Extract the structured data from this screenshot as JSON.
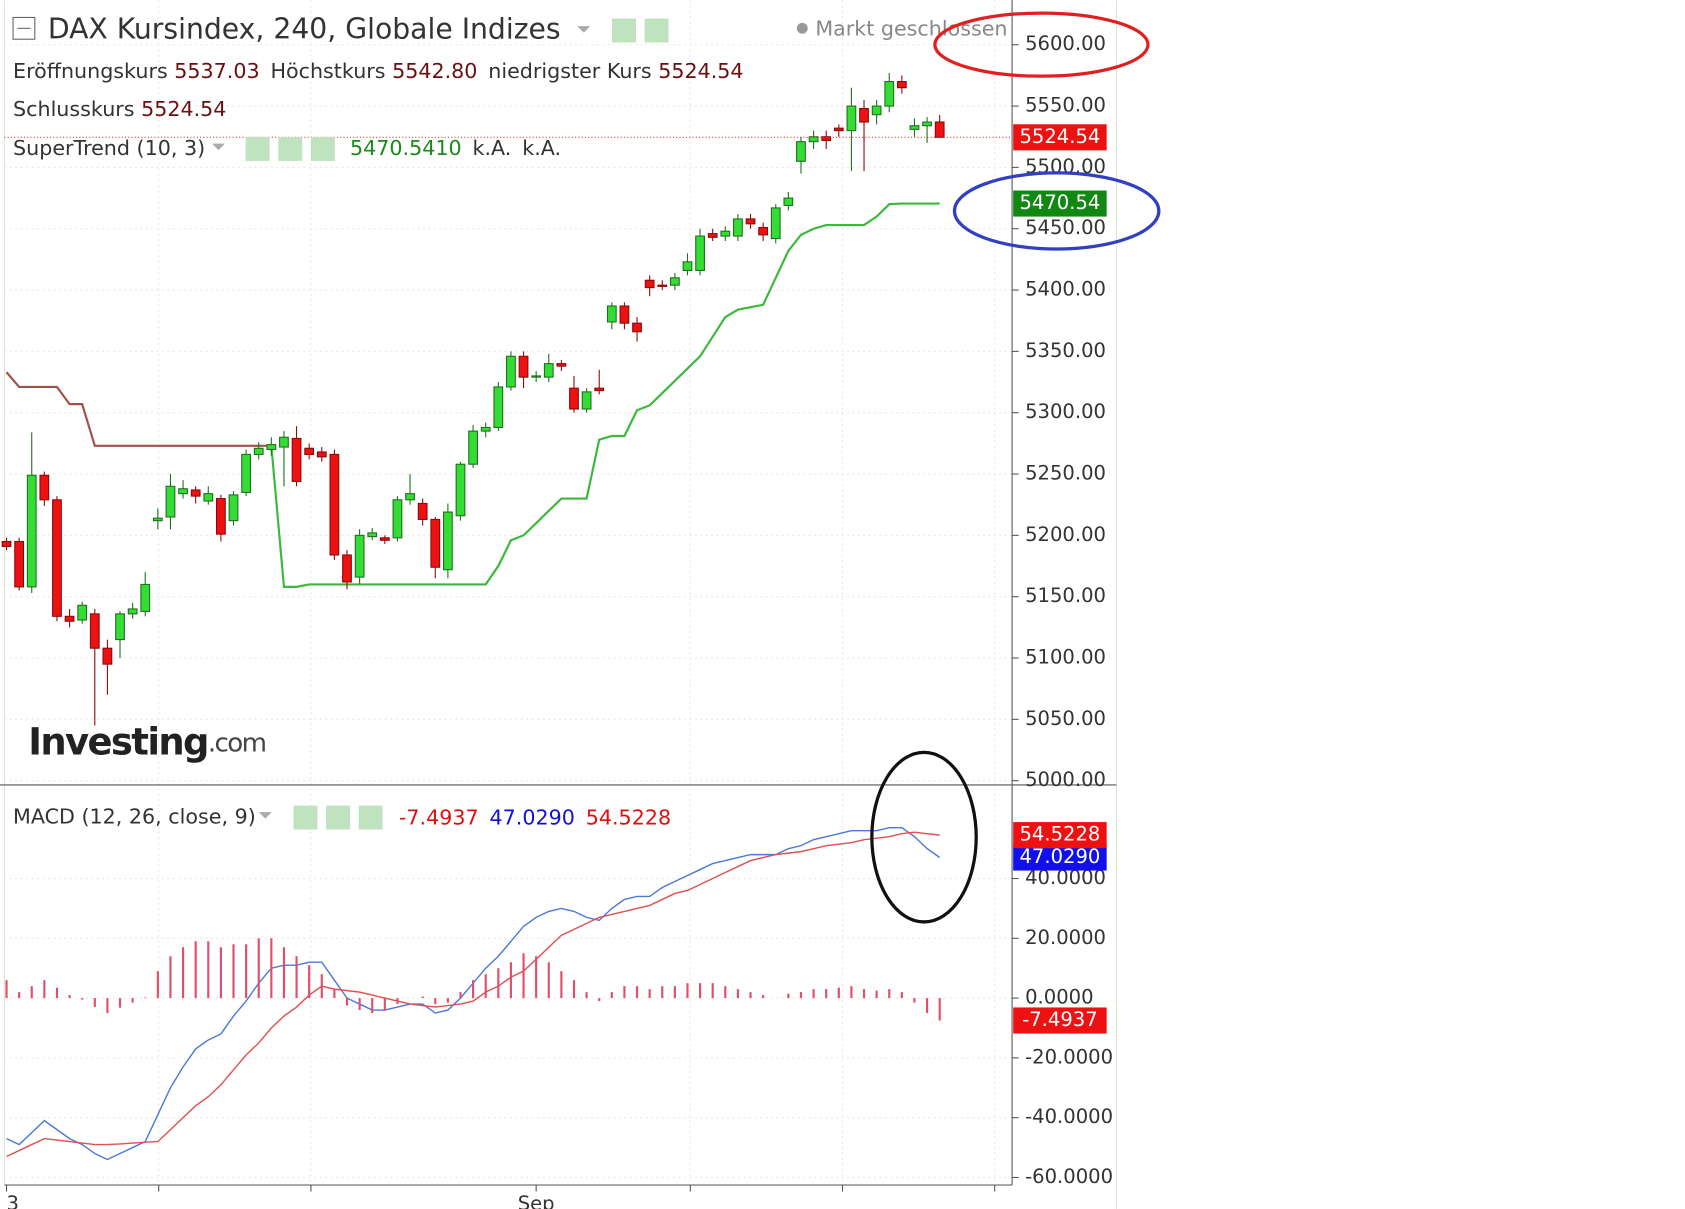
{
  "chart_data": [
    {
      "type": "candlestick",
      "title": "DAX Kursindex, 240, Globale Indizes",
      "status": "Markt geschlossen",
      "ohlc_legend": [
        {
          "name": "Eröffnungskurs",
          "value": "5537.03"
        },
        {
          "name": "Höchstkurs",
          "value": "5542.80"
        },
        {
          "name": "niedrigster Kurs",
          "value": "5524.54"
        },
        {
          "name": "Schlusskurs",
          "value": "5524.54"
        }
      ],
      "indicator": {
        "name": "SuperTrend (10, 3)",
        "readout": [
          "5470.5410",
          "k.A.",
          "k.A."
        ],
        "tag": "5470.54",
        "upper_color": "#a0524a",
        "lower_color": "#3cb83c",
        "upper": [
          5333,
          5321,
          5321,
          5321,
          5321,
          5307,
          5307,
          5273,
          5273,
          5273,
          5273,
          5273,
          5273,
          5273,
          5273,
          5273,
          5273,
          5273,
          5273,
          5273,
          5273,
          5273,
          null,
          null,
          null,
          null,
          null,
          null,
          null,
          null,
          null,
          null,
          null,
          null,
          null,
          null,
          null,
          null,
          null,
          null,
          null,
          null,
          null,
          null,
          null,
          null,
          null,
          null,
          null,
          null,
          null,
          null,
          null,
          null,
          null,
          null,
          null,
          null,
          null,
          null,
          null,
          null,
          null,
          null,
          null,
          null,
          null,
          null,
          null,
          null,
          null,
          null,
          null,
          null,
          null
        ],
        "lower": [
          null,
          null,
          null,
          null,
          null,
          null,
          null,
          null,
          null,
          null,
          null,
          null,
          null,
          null,
          null,
          null,
          null,
          null,
          null,
          null,
          null,
          5273,
          5158,
          5158,
          5160,
          5160,
          5160,
          5160,
          5160,
          5160,
          5160,
          5160,
          5160,
          5160,
          5160,
          5160,
          5160,
          5160,
          5160,
          5175,
          5196,
          5200,
          5210,
          5220,
          5230,
          5230,
          5230,
          5278,
          5281,
          5281,
          5302,
          5306,
          5316,
          5326,
          5336,
          5346,
          5362,
          5378,
          5384,
          5386,
          5388,
          5410,
          5432,
          5445,
          5450,
          5453,
          5453,
          5453,
          5453,
          5460,
          5470,
          5470.54,
          5470.54,
          5470.54,
          5470.54
        ]
      },
      "categories": [
        "3",
        null,
        null,
        null,
        null,
        null,
        null,
        null,
        null,
        null,
        null,
        null,
        null,
        null,
        null,
        null,
        null,
        null,
        null,
        null,
        null,
        null,
        null,
        null,
        null,
        null,
        null,
        null,
        null,
        null,
        null,
        null,
        null,
        null,
        null,
        null,
        null,
        null,
        null,
        null,
        null,
        null,
        "Sep",
        null,
        null,
        null,
        null,
        null,
        null,
        null,
        null,
        null,
        null,
        null,
        null,
        null,
        null,
        null,
        null,
        null,
        null,
        null,
        null,
        null,
        null,
        null,
        null,
        null,
        null,
        null,
        null,
        null,
        null,
        null,
        null
      ],
      "open": [
        5195,
        5195,
        5158,
        5249,
        5229,
        5134,
        5131,
        5136,
        5108,
        5115,
        5136,
        5138,
        5212,
        5215,
        5234,
        5237,
        5228,
        5230,
        5212,
        5235,
        5266,
        5270,
        5272,
        5279,
        5271,
        5268,
        5266,
        5184,
        5166,
        5199,
        5198,
        5198,
        5229,
        5226,
        5213,
        5172,
        5216,
        5258,
        5285,
        5288,
        5321,
        5346,
        5329,
        5329,
        5340,
        5320,
        5303,
        5320,
        5374,
        5387,
        5373,
        5408,
        5404,
        5404,
        5416,
        5416,
        5446,
        5444,
        5444,
        5458,
        5451,
        5442,
        5469,
        5505,
        5521,
        5525,
        5532,
        5530,
        5548,
        5543,
        5550,
        5570,
        5531,
        5534,
        5537.03
      ],
      "high": [
        5198,
        5198,
        5284,
        5252,
        5232,
        5140,
        5146,
        5140,
        5115,
        5138,
        5145,
        5170,
        5222,
        5250,
        5245,
        5240,
        5240,
        5233,
        5236,
        5270,
        5276,
        5280,
        5285,
        5289,
        5275,
        5272,
        5270,
        5188,
        5205,
        5206,
        5200,
        5232,
        5250,
        5230,
        5215,
        5226,
        5260,
        5290,
        5292,
        5325,
        5350,
        5350,
        5334,
        5348,
        5343,
        5330,
        5320,
        5335,
        5390,
        5390,
        5378,
        5412,
        5408,
        5414,
        5430,
        5450,
        5450,
        5452,
        5462,
        5462,
        5455,
        5470,
        5480,
        5525,
        5530,
        5530,
        5535,
        5565,
        5555,
        5555,
        5577,
        5575,
        5540,
        5541,
        5542.8
      ],
      "low": [
        5188,
        5155,
        5153,
        5224,
        5130,
        5125,
        5128,
        5045,
        5070,
        5100,
        5132,
        5134,
        5205,
        5205,
        5230,
        5226,
        5225,
        5195,
        5208,
        5232,
        5262,
        5265,
        5240,
        5240,
        5262,
        5260,
        5180,
        5156,
        5160,
        5196,
        5193,
        5195,
        5225,
        5208,
        5165,
        5165,
        5212,
        5255,
        5280,
        5285,
        5318,
        5320,
        5325,
        5325,
        5334,
        5300,
        5300,
        5315,
        5368,
        5368,
        5358,
        5395,
        5400,
        5400,
        5412,
        5412,
        5440,
        5440,
        5440,
        5450,
        5440,
        5438,
        5465,
        5495,
        5515,
        5515,
        5525,
        5497,
        5497,
        5535,
        5545,
        5560,
        5525,
        5520,
        5524.54
      ],
      "close": [
        5191,
        5158,
        5249,
        5229,
        5134,
        5130,
        5143,
        5108,
        5095,
        5136,
        5140,
        5160,
        5214,
        5240,
        5238,
        5232,
        5234,
        5201,
        5233,
        5266,
        5271,
        5274,
        5280,
        5244,
        5266,
        5264,
        5184,
        5162,
        5200,
        5202,
        5196,
        5229,
        5234,
        5213,
        5174,
        5219,
        5258,
        5285,
        5288,
        5321,
        5346,
        5329,
        5330,
        5340,
        5338,
        5303,
        5317,
        5318,
        5387,
        5373,
        5366,
        5402,
        5403,
        5410,
        5423,
        5444,
        5443,
        5448,
        5458,
        5454,
        5445,
        5467,
        5475,
        5521,
        5525,
        5522,
        5530,
        5550,
        5537,
        5550,
        5570,
        5565,
        5534,
        5537,
        5524.54
      ],
      "up_color": "#33dd33",
      "down_color": "#ee1111",
      "ylim": [
        4996.5,
        5632
      ],
      "yticks": [
        {
          "value": 5000,
          "label": "5000.00"
        },
        {
          "value": 5050,
          "label": "5050.00"
        },
        {
          "value": 5100,
          "label": "5100.00"
        },
        {
          "value": 5150,
          "label": "5150.00"
        },
        {
          "value": 5200,
          "label": "5200.00"
        },
        {
          "value": 5250,
          "label": "5250.00"
        },
        {
          "value": 5300,
          "label": "5300.00"
        },
        {
          "value": 5350,
          "label": "5350.00"
        },
        {
          "value": 5400,
          "label": "5400.00"
        },
        {
          "value": 5450,
          "label": "5450.00"
        },
        {
          "value": 5500,
          "label": "5500.00"
        },
        {
          "value": 5550,
          "label": "5550.00"
        },
        {
          "value": 5600,
          "label": "5600.00"
        }
      ],
      "grid": true,
      "logo_brand": "Investing",
      "logo_suffix": ".com"
    },
    {
      "type": "macd",
      "name": "MACD (12, 26, close, 9)",
      "readout": [
        "-7.4937",
        "47.0290",
        "54.5228"
      ],
      "series": [
        {
          "color": "#4a78d8",
          "values": [
            -47,
            -49,
            -45,
            -41,
            -44,
            -47,
            -49,
            -52,
            -54,
            -52,
            -50,
            -48,
            -39,
            -30,
            -23,
            -17,
            -14,
            -12,
            -6,
            -1,
            5,
            10,
            11,
            11,
            12,
            12,
            6,
            0,
            -2,
            -4,
            -4,
            -3,
            -2,
            -2,
            -5,
            -4,
            0,
            5,
            10,
            14,
            19,
            24,
            27,
            29,
            30,
            29,
            27,
            26,
            30,
            33,
            34,
            34,
            37,
            39,
            41,
            43,
            45,
            46,
            47,
            48,
            48,
            48,
            50,
            51,
            53,
            54,
            55,
            56,
            56,
            56,
            57,
            57,
            54,
            50,
            47.029
          ]
        },
        {
          "color": "#e05050",
          "values": [
            -53,
            -51,
            -49,
            -47,
            -47.5,
            -48,
            -48.5,
            -49,
            -49,
            -48.8,
            -48.5,
            -48.2,
            -48,
            -44,
            -40,
            -36,
            -33,
            -29,
            -24,
            -19,
            -15,
            -10,
            -6,
            -3,
            1,
            4,
            3,
            2.5,
            2,
            1,
            0,
            -1,
            -2,
            -2.5,
            -3,
            -2.5,
            -2,
            -1,
            2,
            4,
            7,
            9,
            13,
            17,
            21,
            23,
            25,
            27,
            28,
            29,
            30,
            31,
            33,
            35,
            36,
            38,
            40,
            42,
            44,
            46,
            47,
            48,
            48.5,
            49,
            50,
            51,
            51.5,
            52,
            53,
            53.5,
            54,
            55,
            55.5,
            55,
            54.5228
          ]
        },
        {
          "type": "histogram",
          "color": "#e0506a",
          "values": [
            6,
            2,
            4,
            6,
            3.5,
            1,
            -0.5,
            -3,
            -5,
            -3.2,
            -1.5,
            0.2,
            9,
            14,
            17,
            19,
            19,
            17,
            18,
            18,
            20,
            20,
            17,
            14,
            11,
            8,
            3,
            -2.5,
            -4,
            -5,
            -4,
            -2,
            0,
            0.5,
            -2,
            -1.5,
            2,
            6,
            8,
            10,
            12,
            15,
            14,
            12,
            9,
            6,
            2,
            -1,
            2,
            4,
            4,
            3,
            4,
            4,
            5,
            5,
            5,
            4,
            3,
            2,
            1,
            0,
            1.5,
            2,
            3,
            3,
            3.5,
            4,
            3,
            2.5,
            3,
            2,
            -1.5,
            -5,
            -7.4937
          ]
        }
      ],
      "ylim": [
        -61.8,
        71.3
      ],
      "yticks": [
        {
          "value": -60,
          "label": "-60.0000"
        },
        {
          "value": -40,
          "label": "-40.0000"
        },
        {
          "value": -20,
          "label": "-20.0000"
        },
        {
          "value": 0,
          "label": "0.0000"
        },
        {
          "value": 20,
          "label": "20.0000"
        },
        {
          "value": 40,
          "label": "40.0000"
        }
      ],
      "grid": true
    }
  ]
}
